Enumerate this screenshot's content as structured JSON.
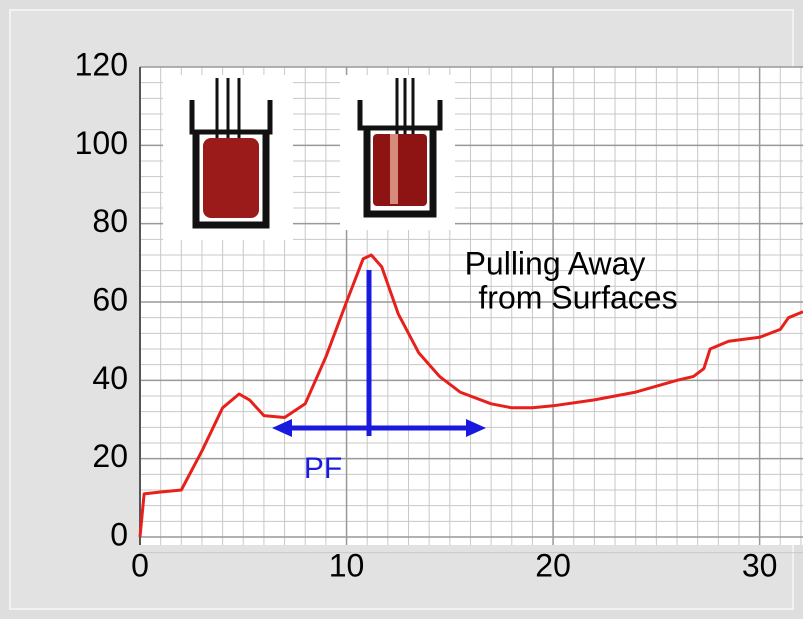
{
  "chart_data": {
    "type": "line",
    "x": [
      0,
      0.2,
      1,
      2,
      3,
      4,
      4.8,
      5.3,
      6,
      7,
      8,
      9,
      10,
      10.8,
      11.2,
      11.7,
      12.5,
      13.5,
      14.5,
      15.5,
      17,
      18,
      19,
      20,
      22,
      24,
      25,
      26,
      26.8,
      27.3,
      27.6,
      28.5,
      30,
      31,
      31.4,
      32.1
    ],
    "values": [
      0,
      11,
      11.5,
      12,
      22,
      33,
      36.5,
      35,
      31,
      30.5,
      34,
      46,
      60,
      71,
      72,
      69,
      57,
      47,
      41,
      37,
      34,
      33,
      33,
      33.5,
      35,
      37,
      38.5,
      40,
      41,
      43,
      48,
      50,
      51,
      53,
      56,
      57.5
    ],
    "color": "#e8201c",
    "xlim": [
      0,
      32.1
    ],
    "ylim": [
      0,
      120
    ],
    "xticks": [
      0,
      10,
      20,
      30
    ],
    "yticks": [
      0,
      20,
      40,
      60,
      80,
      100,
      120
    ],
    "grid": true,
    "annotations": [
      "Pulling Away",
      "from Surfaces",
      "PF"
    ]
  }
}
